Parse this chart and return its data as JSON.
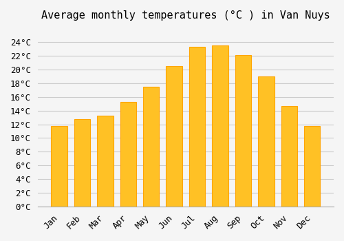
{
  "months": [
    "Jan",
    "Feb",
    "Mar",
    "Apr",
    "May",
    "Jun",
    "Jul",
    "Aug",
    "Sep",
    "Oct",
    "Nov",
    "Dec"
  ],
  "values": [
    11.8,
    12.8,
    13.3,
    15.3,
    17.5,
    20.5,
    23.3,
    23.5,
    22.1,
    19.0,
    14.7,
    11.8
  ],
  "bar_color": "#FFC125",
  "bar_edge_color": "#FFA500",
  "title": "Average monthly temperatures (°C ) in Van Nuys",
  "ylim": [
    0,
    26
  ],
  "yticks": [
    0,
    2,
    4,
    6,
    8,
    10,
    12,
    14,
    16,
    18,
    20,
    22,
    24
  ],
  "background_color": "#f5f5f5",
  "grid_color": "#cccccc",
  "title_fontsize": 11,
  "tick_fontsize": 9,
  "font_family": "monospace"
}
